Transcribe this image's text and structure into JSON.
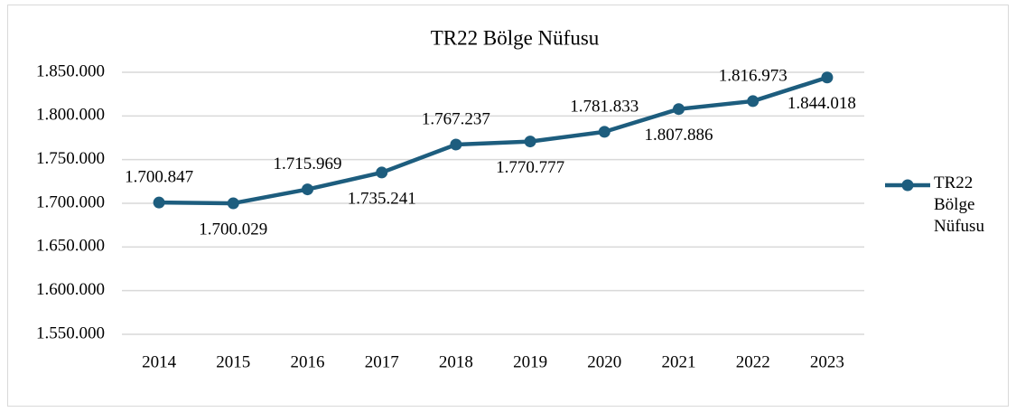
{
  "chart_data": {
    "type": "line",
    "title": "TR22 Bölge Nüfusu",
    "categories": [
      "2014",
      "2015",
      "2016",
      "2017",
      "2018",
      "2019",
      "2020",
      "2021",
      "2022",
      "2023"
    ],
    "series": [
      {
        "name": "TR22 Bölge Nüfusu",
        "color": "#1d5d7e",
        "values": [
          1700847,
          1700029,
          1715969,
          1735241,
          1767237,
          1770777,
          1781833,
          1807886,
          1816973,
          1844018
        ],
        "value_labels": [
          "1.700.847",
          "1.700.029",
          "1.715.969",
          "1.735.241",
          "1.767.237",
          "1.770.777",
          "1.781.833",
          "1.807.886",
          "1.816.973",
          "1.844.018"
        ]
      }
    ],
    "ylim": [
      1550000,
      1850000
    ],
    "yticks": [
      {
        "value": 1550000,
        "label": "1.550.000"
      },
      {
        "value": 1600000,
        "label": "1.600.000"
      },
      {
        "value": 1650000,
        "label": "1.650.000"
      },
      {
        "value": 1700000,
        "label": "1.700.000"
      },
      {
        "value": 1750000,
        "label": "1.750.000"
      },
      {
        "value": 1800000,
        "label": "1.800.000"
      },
      {
        "value": 1850000,
        "label": "1.850.000"
      }
    ],
    "grid": true,
    "legend": "right"
  }
}
